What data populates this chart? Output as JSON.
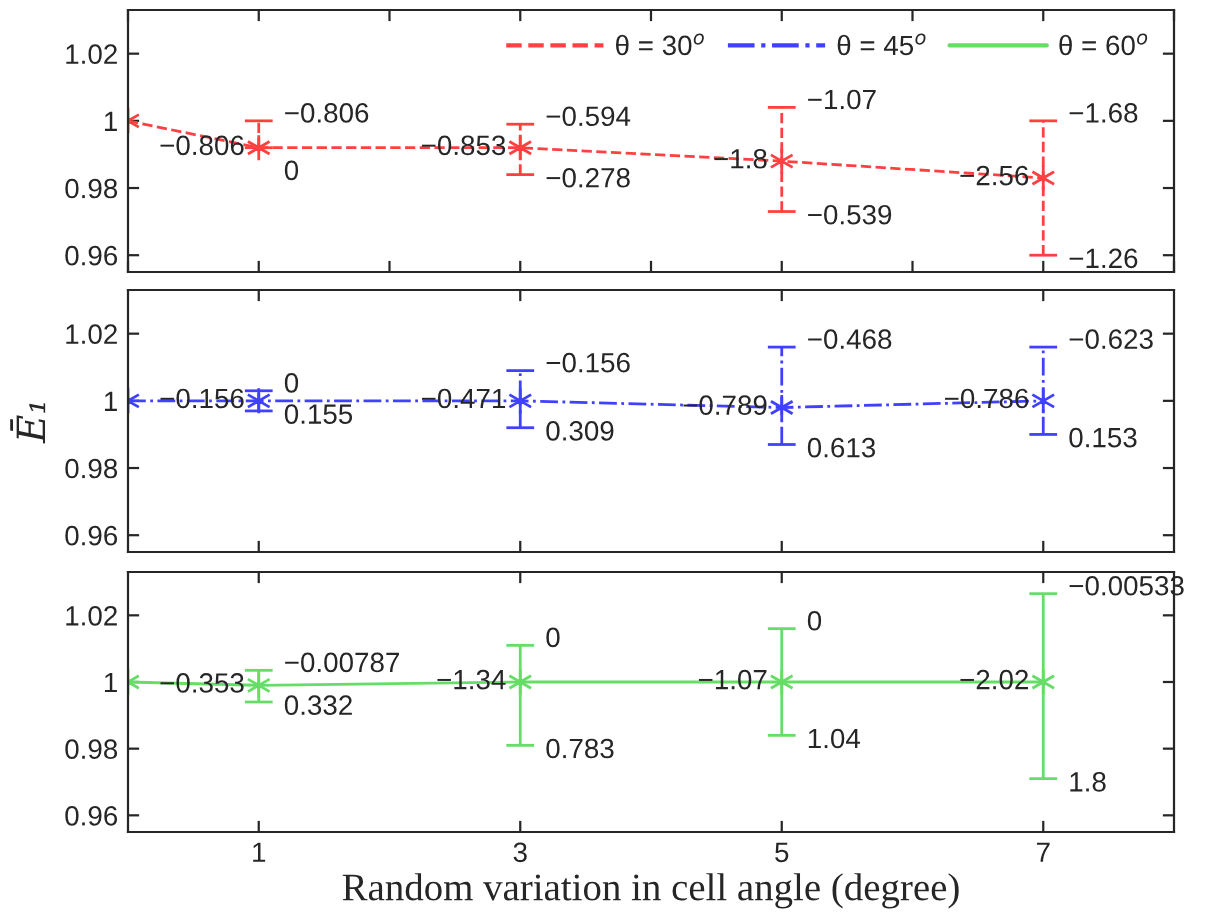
{
  "chart_data": [
    {
      "type": "line",
      "x": [
        0,
        1,
        3,
        5,
        7
      ],
      "xlim": [
        0,
        8
      ],
      "ylim": [
        0.955,
        1.033
      ],
      "xticks": [
        {
          "value": 0,
          "label": null
        },
        {
          "value": 1,
          "label": null
        },
        {
          "value": 2,
          "label": null
        },
        {
          "value": 3,
          "label": null
        },
        {
          "value": 4,
          "label": null
        },
        {
          "value": 5,
          "label": null
        },
        {
          "value": 6,
          "label": null
        },
        {
          "value": 7,
          "label": null
        },
        {
          "value": 8,
          "label": null
        }
      ],
      "yticks": [
        0.96,
        0.98,
        1,
        1.02
      ],
      "tick_labels": "y",
      "legend": "top right",
      "marker": "cross",
      "line_style": "dashed",
      "series": [
        {
          "name": "θ = 30$^{o}$",
          "color": "#ff4040",
          "values": [
            1,
            0.992,
            0.992,
            0.988,
            0.983
          ],
          "errors": [
            null,
            [
              0.992,
              1.0
            ],
            [
              0.984,
              0.999
            ],
            [
              0.973,
              1.004
            ],
            [
              0.96,
              1.0
            ]
          ]
        }
      ],
      "annotations": [
        {
          "text": "−0.806",
          "x": 1,
          "y": 0.992
        },
        {
          "text": "−0.806",
          "x": 1,
          "y": 1.0
        },
        {
          "text": "0",
          "x": 1,
          "y": 0.992
        },
        {
          "text": "−0.853",
          "x": 3,
          "y": 0.992
        },
        {
          "text": "−0.594",
          "x": 3,
          "y": 0.999
        },
        {
          "text": "−0.278",
          "x": 3,
          "y": 0.984
        },
        {
          "text": "−1.8",
          "x": 5,
          "y": 0.988
        },
        {
          "text": "−1.07",
          "x": 5,
          "y": 1.004
        },
        {
          "text": "−0.539",
          "x": 5,
          "y": 0.973
        },
        {
          "text": "−2.56",
          "x": 7,
          "y": 0.983
        },
        {
          "text": "−1.68",
          "x": 7,
          "y": 1.0
        },
        {
          "text": "−1.26",
          "x": 7,
          "y": 0.96
        }
      ]
    },
    {
      "type": "line",
      "x": [
        0,
        1,
        3,
        5,
        7
      ],
      "xlim": [
        0,
        8
      ],
      "ylim": [
        0.955,
        1.033
      ],
      "xticks": [
        {
          "value": 1,
          "label": null
        },
        {
          "value": 3,
          "label": null
        },
        {
          "value": 5,
          "label": null
        },
        {
          "value": 7,
          "label": null
        }
      ],
      "yticks": [
        0.96,
        0.98,
        1,
        1.02
      ],
      "tick_labels": "y",
      "ylabel": "Ē₁",
      "marker": "cross",
      "line_style": "dashdot",
      "series": [
        {
          "name": "θ = 45$^{o}$",
          "color": "#4040ff",
          "values": [
            1,
            1.0,
            1.0,
            0.998,
            1.0
          ],
          "errors": [
            null,
            [
              0.997,
              1.003
            ],
            [
              0.992,
              1.009
            ],
            [
              0.987,
              1.016
            ],
            [
              0.99,
              1.016
            ]
          ]
        }
      ],
      "annotations": [
        {
          "text": "−0.156",
          "x": 1,
          "y": 1.0
        },
        {
          "text": "0",
          "x": 1,
          "y": 1.003
        },
        {
          "text": "0.155",
          "x": 1,
          "y": 0.997
        },
        {
          "text": "−0.471",
          "x": 3,
          "y": 1.0
        },
        {
          "text": "−0.156",
          "x": 3,
          "y": 1.009
        },
        {
          "text": "0.309",
          "x": 3,
          "y": 0.992
        },
        {
          "text": "−0.789",
          "x": 5,
          "y": 0.998
        },
        {
          "text": "−0.468",
          "x": 5,
          "y": 1.016
        },
        {
          "text": "0.613",
          "x": 5,
          "y": 0.987
        },
        {
          "text": "−0.786",
          "x": 7,
          "y": 1.0
        },
        {
          "text": "−0.623",
          "x": 7,
          "y": 1.016
        },
        {
          "text": "0.153",
          "x": 7,
          "y": 0.99
        }
      ]
    },
    {
      "type": "line",
      "x": [
        0,
        1,
        3,
        5,
        7
      ],
      "xlim": [
        0,
        8
      ],
      "ylim": [
        0.955,
        1.033
      ],
      "xticks": [
        1,
        3,
        5,
        7
      ],
      "yticks": [
        0.96,
        0.98,
        1,
        1.02
      ],
      "xlabel": "Random variation in cell angle (degree)",
      "marker": "cross",
      "line_style": "solid",
      "series": [
        {
          "name": "θ = 60$^{o}$",
          "color": "#66dd66",
          "values": [
            1,
            0.999,
            1.0,
            1.0,
            1.0
          ],
          "errors": [
            null,
            [
              0.994,
              1.0035
            ],
            [
              0.981,
              1.011
            ],
            [
              0.984,
              1.016
            ],
            [
              0.971,
              1.0265
            ]
          ]
        }
      ],
      "annotations": [
        {
          "text": "−0.353",
          "x": 1,
          "y": 0.999
        },
        {
          "text": "−0.00787",
          "x": 1,
          "y": 1.0035
        },
        {
          "text": "0.332",
          "x": 1,
          "y": 0.994
        },
        {
          "text": "−1.34",
          "x": 3,
          "y": 1.0
        },
        {
          "text": "0",
          "x": 3,
          "y": 1.011
        },
        {
          "text": "0.783",
          "x": 3,
          "y": 0.981
        },
        {
          "text": "−1.07",
          "x": 5,
          "y": 1.0
        },
        {
          "text": "0",
          "x": 5,
          "y": 1.016
        },
        {
          "text": "1.04",
          "x": 5,
          "y": 0.984
        },
        {
          "text": "−2.02",
          "x": 7,
          "y": 1.0
        },
        {
          "text": "−0.00533",
          "x": 7,
          "y": 1.0265
        },
        {
          "text": "1.8",
          "x": 7,
          "y": 0.971
        }
      ]
    }
  ]
}
